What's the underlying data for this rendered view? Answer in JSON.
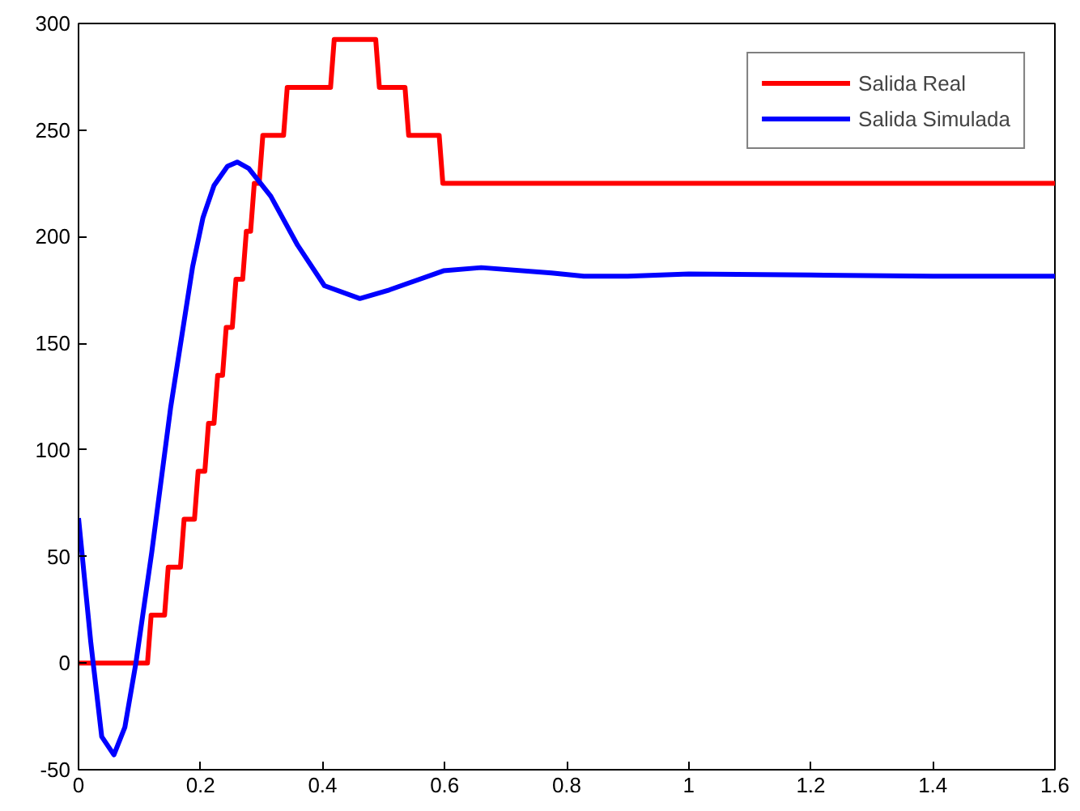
{
  "chart_data": {
    "type": "line",
    "xlim": [
      0,
      1.6
    ],
    "ylim": [
      -50,
      300
    ],
    "xticks": [
      0,
      0.2,
      0.4,
      0.6,
      0.8,
      1,
      1.2,
      1.4,
      1.6
    ],
    "yticks": [
      -50,
      0,
      50,
      100,
      150,
      200,
      250,
      300
    ],
    "grid": false,
    "legend": "top right",
    "line_style": "solid",
    "marker": "none",
    "series": [
      {
        "name": "Salida Real",
        "color": "#ff0000",
        "x": [
          0,
          0.113,
          0.119,
          0.141,
          0.147,
          0.167,
          0.173,
          0.19,
          0.196,
          0.207,
          0.213,
          0.222,
          0.228,
          0.236,
          0.242,
          0.252,
          0.258,
          0.269,
          0.275,
          0.282,
          0.288,
          0.296,
          0.302,
          0.336,
          0.342,
          0.413,
          0.419,
          0.487,
          0.493,
          0.535,
          0.541,
          0.591,
          0.597,
          1.6
        ],
        "values": [
          0,
          0,
          22.5,
          22.5,
          45,
          45,
          67.5,
          67.5,
          90,
          90,
          112.5,
          112.5,
          135,
          135,
          157.5,
          157.5,
          180,
          180,
          202.5,
          202.5,
          225,
          225,
          247.5,
          247.5,
          270,
          270,
          292.5,
          292.5,
          270,
          270,
          247.5,
          247.5,
          225,
          225
        ]
      },
      {
        "name": "Salida Simulada",
        "color": "#0000ff",
        "x": [
          0,
          0.02,
          0.038,
          0.058,
          0.076,
          0.094,
          0.12,
          0.151,
          0.187,
          0.204,
          0.222,
          0.244,
          0.26,
          0.279,
          0.315,
          0.359,
          0.403,
          0.461,
          0.509,
          0.598,
          0.66,
          0.775,
          0.828,
          0.9,
          1.0,
          1.2,
          1.4,
          1.6
        ],
        "values": [
          68,
          10,
          -34.5,
          -43,
          -30,
          0,
          52,
          120,
          186,
          209,
          224,
          233,
          235,
          232,
          219,
          196,
          177,
          171,
          175,
          184,
          185.5,
          183,
          181.5,
          181.5,
          182.5,
          182,
          181.5,
          181.5
        ]
      }
    ]
  }
}
